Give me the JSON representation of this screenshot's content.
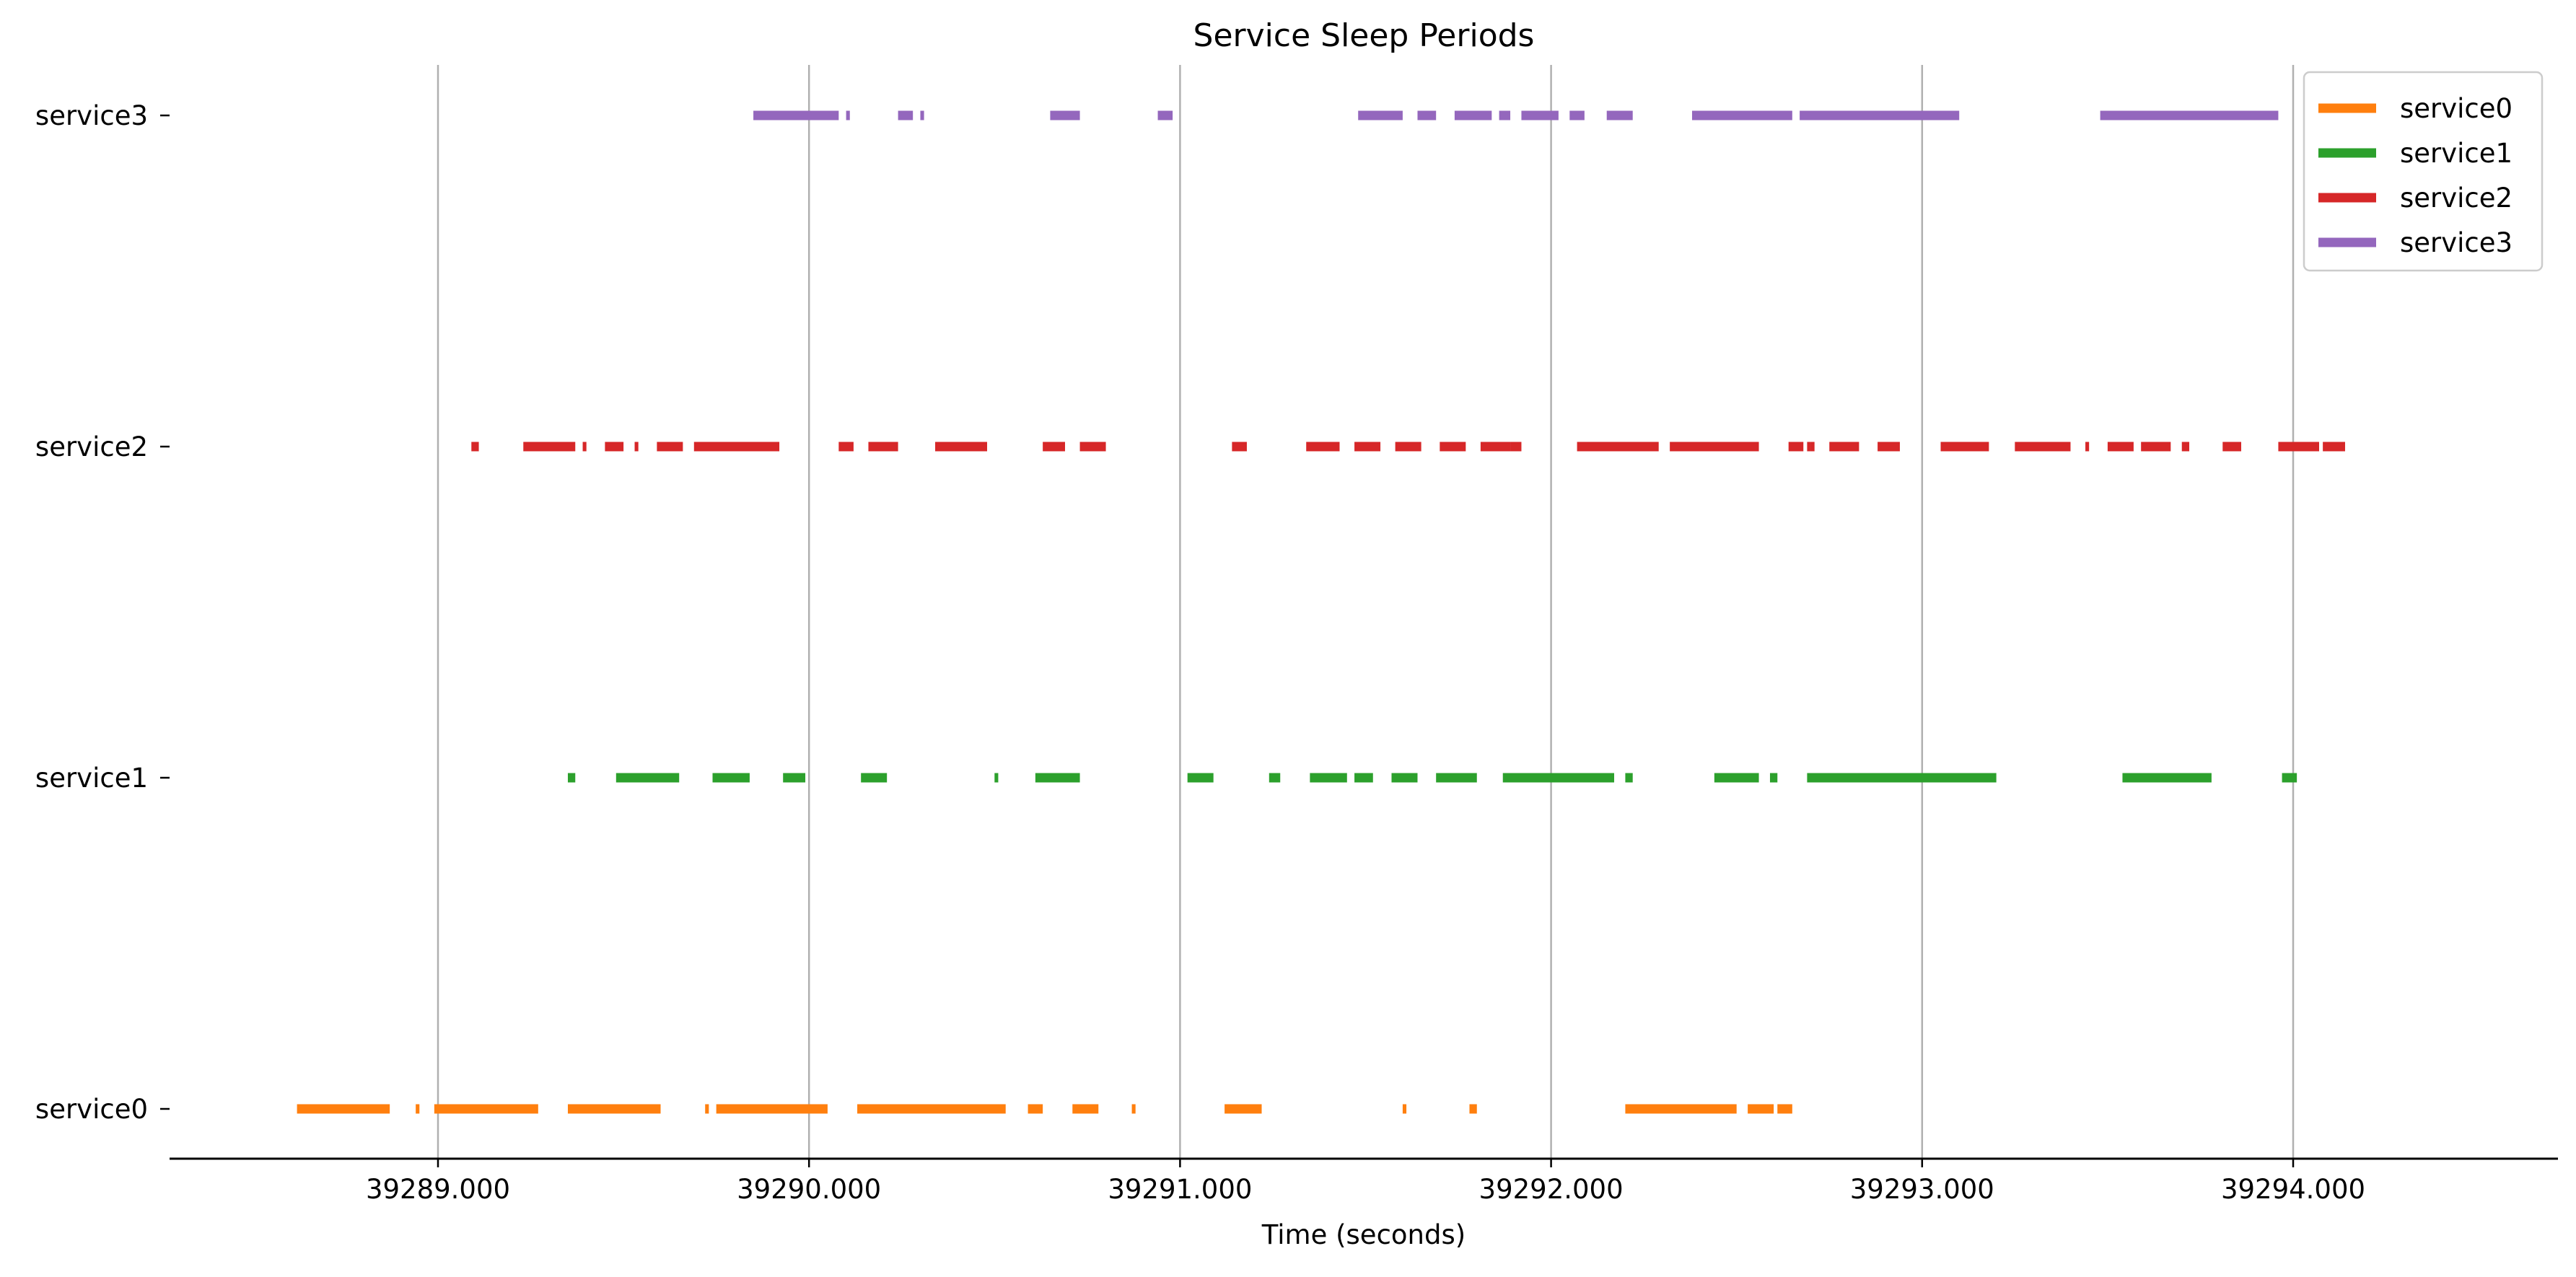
{
  "chart_data": {
    "type": "timeline",
    "title": "Service Sleep Periods",
    "xlabel": "Time (seconds)",
    "ylabel": "",
    "xlim": [
      39288.3,
      39294.7
    ],
    "x_ticks": [
      39289.0,
      39290.0,
      39291.0,
      39292.0,
      39293.0,
      39294.0
    ],
    "x_tick_labels": [
      "39289.000",
      "39290.000",
      "39291.000",
      "39292.000",
      "39293.000",
      "39294.000"
    ],
    "grid": "vertical at x ticks",
    "legend_position": "top-right",
    "categories": [
      "service0",
      "service1",
      "service2",
      "service3"
    ],
    "series": [
      {
        "name": "service0",
        "color": "#ff7f0e",
        "intervals": [
          [
            39288.62,
            39288.87
          ],
          [
            39288.94,
            39288.95
          ],
          [
            39288.99,
            39289.27
          ],
          [
            39289.35,
            39289.6
          ],
          [
            39289.72,
            39289.73
          ],
          [
            39289.75,
            39290.05
          ],
          [
            39290.13,
            39290.53
          ],
          [
            39290.59,
            39290.63
          ],
          [
            39290.71,
            39290.78
          ],
          [
            39290.87,
            39290.88
          ],
          [
            39291.12,
            39291.22
          ],
          [
            39291.6,
            39291.61
          ],
          [
            39291.78,
            39291.8
          ],
          [
            39292.2,
            39292.5
          ],
          [
            39292.53,
            39292.6
          ],
          [
            39292.61,
            39292.65
          ]
        ]
      },
      {
        "name": "service1",
        "color": "#2ca02c",
        "intervals": [
          [
            39289.35,
            39289.37
          ],
          [
            39289.48,
            39289.65
          ],
          [
            39289.74,
            39289.84
          ],
          [
            39289.93,
            39289.99
          ],
          [
            39290.14,
            39290.21
          ],
          [
            39290.5,
            39290.51
          ],
          [
            39290.61,
            39290.73
          ],
          [
            39291.02,
            39291.09
          ],
          [
            39291.24,
            39291.27
          ],
          [
            39291.35,
            39291.45
          ],
          [
            39291.47,
            39291.52
          ],
          [
            39291.57,
            39291.64
          ],
          [
            39291.69,
            39291.8
          ],
          [
            39291.87,
            39292.17
          ],
          [
            39292.2,
            39292.22
          ],
          [
            39292.44,
            39292.56
          ],
          [
            39292.59,
            39292.61
          ],
          [
            39292.69,
            39293.2
          ],
          [
            39293.54,
            39293.78
          ],
          [
            39293.97,
            39294.01
          ]
        ]
      },
      {
        "name": "service2",
        "color": "#d62728",
        "intervals": [
          [
            39289.09,
            39289.11
          ],
          [
            39289.23,
            39289.37
          ],
          [
            39289.39,
            39289.4
          ],
          [
            39289.45,
            39289.5
          ],
          [
            39289.53,
            39289.54
          ],
          [
            39289.59,
            39289.66
          ],
          [
            39289.69,
            39289.92
          ],
          [
            39290.08,
            39290.12
          ],
          [
            39290.16,
            39290.24
          ],
          [
            39290.34,
            39290.48
          ],
          [
            39290.63,
            39290.69
          ],
          [
            39290.73,
            39290.8
          ],
          [
            39291.14,
            39291.18
          ],
          [
            39291.34,
            39291.43
          ],
          [
            39291.47,
            39291.54
          ],
          [
            39291.58,
            39291.65
          ],
          [
            39291.7,
            39291.77
          ],
          [
            39291.81,
            39291.89
          ],
          [
            39291.89,
            39291.92
          ],
          [
            39292.07,
            39292.29
          ],
          [
            39292.32,
            39292.56
          ],
          [
            39292.64,
            39292.68
          ],
          [
            39292.69,
            39292.7
          ],
          [
            39292.7,
            39292.71
          ],
          [
            39292.75,
            39292.83
          ],
          [
            39292.88,
            39292.94
          ],
          [
            39293.05,
            39293.18
          ],
          [
            39293.25,
            39293.4
          ],
          [
            39293.44,
            39293.45
          ],
          [
            39293.5,
            39293.57
          ],
          [
            39293.59,
            39293.67
          ],
          [
            39293.7,
            39293.72
          ],
          [
            39293.81,
            39293.86
          ],
          [
            39293.96,
            39294.07
          ],
          [
            39294.08,
            39294.14
          ]
        ]
      },
      {
        "name": "service3",
        "color": "#9467bd",
        "intervals": [
          [
            39289.85,
            39290.08
          ],
          [
            39290.1,
            39290.11
          ],
          [
            39290.24,
            39290.28
          ],
          [
            39290.3,
            39290.31
          ],
          [
            39290.65,
            39290.73
          ],
          [
            39290.94,
            39290.98
          ],
          [
            39291.48,
            39291.6
          ],
          [
            39291.64,
            39291.69
          ],
          [
            39291.74,
            39291.84
          ],
          [
            39291.86,
            39291.89
          ],
          [
            39291.92,
            39292.02
          ],
          [
            39292.05,
            39292.09
          ],
          [
            39292.15,
            39292.22
          ],
          [
            39292.38,
            39292.65
          ],
          [
            39292.67,
            39293.1
          ],
          [
            39293.48,
            39293.96
          ]
        ]
      }
    ]
  }
}
